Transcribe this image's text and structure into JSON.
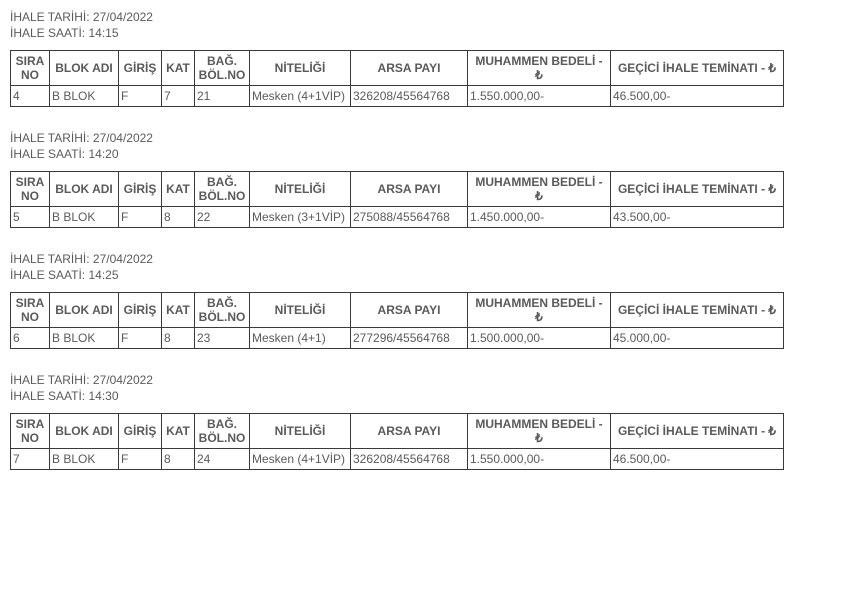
{
  "labels": {
    "ihale_tarihi": "İHALE TARİHİ:",
    "ihale_saati": "İHALE SAATİ:"
  },
  "columns": {
    "sira_no": "SIRA NO",
    "blok_adi": "BLOK ADI",
    "giris": "GİRİŞ",
    "kat": "KAT",
    "bag_bol_no": "BAĞ. BÖL.NO",
    "niteligi": "NİTELİĞİ",
    "arsa_payi": "ARSA PAYI",
    "muhammen": "MUHAMMEN BEDELİ - ₺",
    "teminat": "GEÇİCİ İHALE TEMİNATI - ₺"
  },
  "sections": [
    {
      "tarih": "27/04/2022",
      "saat": "14:15",
      "row": {
        "sira_no": "4",
        "blok_adi": "B BLOK",
        "giris": "F",
        "kat": "7",
        "bag_bol_no": "21",
        "niteligi": "Mesken (4+1VİP)",
        "arsa_payi": "326208/45564768",
        "muhammen": "1.550.000,00-",
        "teminat": "46.500,00-"
      }
    },
    {
      "tarih": "27/04/2022",
      "saat": "14:20",
      "row": {
        "sira_no": "5",
        "blok_adi": "B BLOK",
        "giris": "F",
        "kat": "8",
        "bag_bol_no": "22",
        "niteligi": "Mesken (3+1VİP)",
        "arsa_payi": "275088/45564768",
        "muhammen": "1.450.000,00-",
        "teminat": "43.500,00-"
      }
    },
    {
      "tarih": "27/04/2022",
      "saat": "14:25",
      "row": {
        "sira_no": "6",
        "blok_adi": "B BLOK",
        "giris": "F",
        "kat": "8",
        "bag_bol_no": "23",
        "niteligi": "Mesken (4+1)",
        "arsa_payi": "277296/45564768",
        "muhammen": "1.500.000,00-",
        "teminat": "45.000,00-"
      }
    },
    {
      "tarih": "27/04/2022",
      "saat": "14:30",
      "row": {
        "sira_no": "7",
        "blok_adi": "B BLOK",
        "giris": "F",
        "kat": "8",
        "bag_bol_no": "24",
        "niteligi": "Mesken (4+1VİP)",
        "arsa_payi": "326208/45564768",
        "muhammen": "1.550.000,00-",
        "teminat": "46.500,00-"
      }
    }
  ]
}
